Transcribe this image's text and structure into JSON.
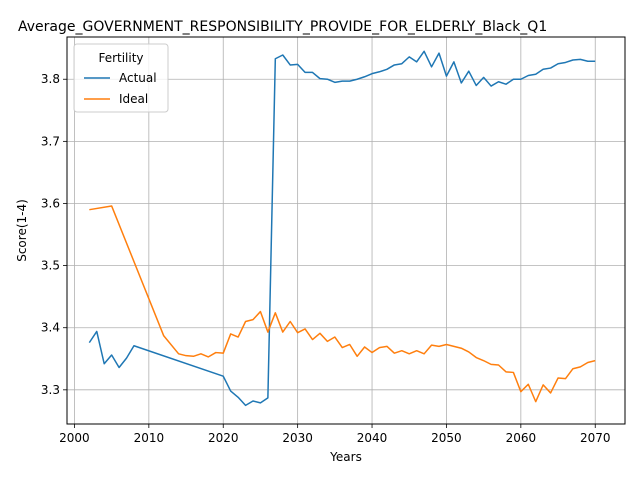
{
  "chart_data": {
    "type": "line",
    "title": "Average_GOVERNMENT_RESPONSIBILITY_PROVIDE_FOR_ELDERLY_Black_Q1",
    "xlabel": "Years",
    "ylabel": "Score(1-4)",
    "xlim": [
      1999,
      2074
    ],
    "ylim": [
      3.245,
      3.868
    ],
    "xticks": [
      2000,
      2010,
      2020,
      2030,
      2040,
      2050,
      2060,
      2070
    ],
    "yticks": [
      3.3,
      3.4,
      3.5,
      3.6,
      3.7,
      3.8
    ],
    "grid": true,
    "legend": {
      "title": "Fertility",
      "position": "top-left"
    },
    "series": [
      {
        "name": "Actual",
        "color": "#1f77b4",
        "points": [
          [
            2002,
            3.376
          ],
          [
            2003,
            3.394
          ],
          [
            2004,
            3.342
          ],
          [
            2005,
            3.356
          ],
          [
            2006,
            3.336
          ],
          [
            2007,
            3.351
          ],
          [
            2008,
            3.371
          ],
          [
            2020,
            3.322
          ],
          [
            2021,
            3.298
          ],
          [
            2022,
            3.288
          ],
          [
            2023,
            3.275
          ],
          [
            2024,
            3.282
          ],
          [
            2025,
            3.279
          ],
          [
            2026,
            3.287
          ],
          [
            2027,
            3.833
          ],
          [
            2028,
            3.839
          ],
          [
            2029,
            3.823
          ],
          [
            2030,
            3.824
          ],
          [
            2031,
            3.811
          ],
          [
            2032,
            3.811
          ],
          [
            2033,
            3.801
          ],
          [
            2034,
            3.8
          ],
          [
            2035,
            3.795
          ],
          [
            2036,
            3.797
          ],
          [
            2037,
            3.797
          ],
          [
            2038,
            3.8
          ],
          [
            2039,
            3.804
          ],
          [
            2040,
            3.809
          ],
          [
            2041,
            3.812
          ],
          [
            2042,
            3.816
          ],
          [
            2043,
            3.823
          ],
          [
            2044,
            3.825
          ],
          [
            2045,
            3.836
          ],
          [
            2046,
            3.828
          ],
          [
            2047,
            3.845
          ],
          [
            2048,
            3.82
          ],
          [
            2049,
            3.842
          ],
          [
            2050,
            3.805
          ],
          [
            2051,
            3.828
          ],
          [
            2052,
            3.794
          ],
          [
            2053,
            3.813
          ],
          [
            2054,
            3.79
          ],
          [
            2055,
            3.803
          ],
          [
            2056,
            3.789
          ],
          [
            2057,
            3.796
          ],
          [
            2058,
            3.792
          ],
          [
            2059,
            3.8
          ],
          [
            2060,
            3.8
          ],
          [
            2061,
            3.806
          ],
          [
            2062,
            3.808
          ],
          [
            2063,
            3.816
          ],
          [
            2064,
            3.818
          ],
          [
            2065,
            3.825
          ],
          [
            2066,
            3.827
          ],
          [
            2067,
            3.831
          ],
          [
            2068,
            3.832
          ],
          [
            2069,
            3.829
          ],
          [
            2070,
            3.829
          ]
        ]
      },
      {
        "name": "Ideal",
        "color": "#ff7f0e",
        "points": [
          [
            2002,
            3.59
          ],
          [
            2005,
            3.596
          ],
          [
            2012,
            3.387
          ],
          [
            2014,
            3.358
          ],
          [
            2015,
            3.355
          ],
          [
            2016,
            3.354
          ],
          [
            2017,
            3.358
          ],
          [
            2018,
            3.353
          ],
          [
            2019,
            3.36
          ],
          [
            2020,
            3.359
          ],
          [
            2021,
            3.39
          ],
          [
            2022,
            3.385
          ],
          [
            2023,
            3.41
          ],
          [
            2024,
            3.413
          ],
          [
            2025,
            3.426
          ],
          [
            2026,
            3.393
          ],
          [
            2027,
            3.424
          ],
          [
            2028,
            3.393
          ],
          [
            2029,
            3.41
          ],
          [
            2030,
            3.392
          ],
          [
            2031,
            3.398
          ],
          [
            2032,
            3.381
          ],
          [
            2033,
            3.391
          ],
          [
            2034,
            3.378
          ],
          [
            2035,
            3.385
          ],
          [
            2036,
            3.368
          ],
          [
            2037,
            3.373
          ],
          [
            2038,
            3.354
          ],
          [
            2039,
            3.369
          ],
          [
            2040,
            3.36
          ],
          [
            2041,
            3.368
          ],
          [
            2042,
            3.37
          ],
          [
            2043,
            3.359
          ],
          [
            2044,
            3.363
          ],
          [
            2045,
            3.358
          ],
          [
            2046,
            3.363
          ],
          [
            2047,
            3.358
          ],
          [
            2048,
            3.372
          ],
          [
            2049,
            3.37
          ],
          [
            2050,
            3.373
          ],
          [
            2051,
            3.37
          ],
          [
            2052,
            3.367
          ],
          [
            2053,
            3.361
          ],
          [
            2054,
            3.352
          ],
          [
            2055,
            3.347
          ],
          [
            2056,
            3.341
          ],
          [
            2057,
            3.34
          ],
          [
            2058,
            3.329
          ],
          [
            2059,
            3.328
          ],
          [
            2060,
            3.297
          ],
          [
            2061,
            3.309
          ],
          [
            2062,
            3.281
          ],
          [
            2063,
            3.308
          ],
          [
            2064,
            3.295
          ],
          [
            2065,
            3.319
          ],
          [
            2066,
            3.318
          ],
          [
            2067,
            3.334
          ],
          [
            2068,
            3.337
          ],
          [
            2069,
            3.344
          ],
          [
            2070,
            3.347
          ]
        ]
      }
    ]
  }
}
